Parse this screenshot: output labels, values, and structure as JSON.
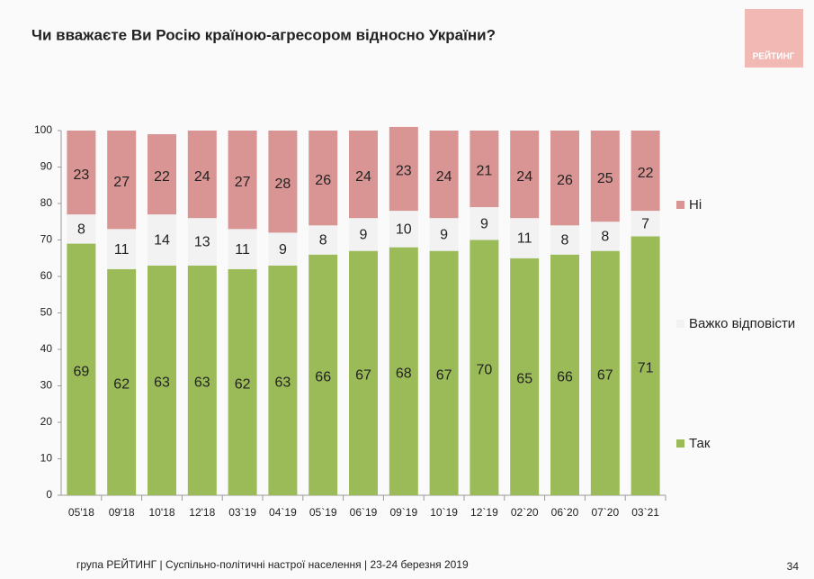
{
  "chart_data": {
    "type": "stacked_bar",
    "title": "Чи вважаєте Ви Росію країною-агресором відносно України?",
    "categories": [
      "05'18",
      "09'18",
      "10'18",
      "12'18",
      "03`19",
      "04`19",
      "05`19",
      "06`19",
      "09`19",
      "10`19",
      "12`19",
      "02`20",
      "06`20",
      "07`20",
      "03`21"
    ],
    "series": [
      {
        "name": "Так",
        "color": "#9bbb59",
        "values": [
          69,
          62,
          63,
          63,
          62,
          63,
          66,
          67,
          68,
          67,
          70,
          65,
          66,
          67,
          71
        ]
      },
      {
        "name": "Важко відповісти",
        "color": "#f2f2f2",
        "values": [
          8,
          11,
          14,
          13,
          11,
          9,
          8,
          9,
          10,
          9,
          9,
          11,
          8,
          8,
          7
        ]
      },
      {
        "name": "Ні",
        "color": "#d99594",
        "values": [
          23,
          27,
          22,
          24,
          27,
          28,
          26,
          24,
          23,
          24,
          21,
          24,
          26,
          25,
          22
        ]
      }
    ],
    "ylim": [
      0,
      100
    ],
    "yticks": [
      0,
      10,
      20,
      30,
      40,
      50,
      60,
      70,
      80,
      90,
      100
    ],
    "grid": false,
    "legend": "right"
  },
  "logo": "РЕЙТИНГ",
  "footer": "група РЕЙТИНГ | Суспільно-політичні настрої населення  | 23-24 березня 2019",
  "page_number": "34"
}
